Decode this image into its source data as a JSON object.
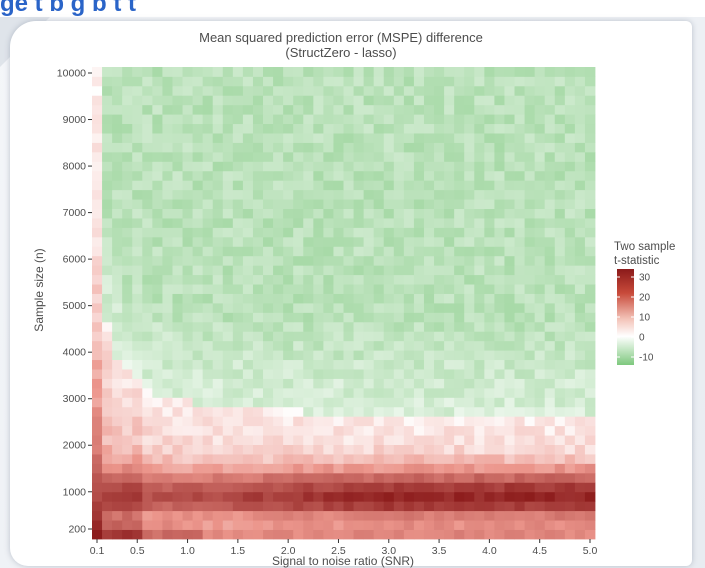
{
  "header_text": "ge  t  b      g         b      t        t",
  "chart_data": {
    "type": "heatmap",
    "title": "Mean squared prediction error (MSPE) difference",
    "subtitle": "(StructZero - lasso)",
    "xlabel": "Signal to noise ratio (SNR)",
    "ylabel": "Sample size (n)",
    "x_ticks": [
      0.1,
      0.5,
      1.0,
      1.5,
      2.0,
      2.5,
      3.0,
      3.5,
      4.0,
      4.5,
      5.0
    ],
    "x_tick_labels": [
      "0.1",
      "0.5",
      "1.0",
      "1.5",
      "2.0",
      "2.5",
      "3.0",
      "3.5",
      "4.0",
      "4.5",
      "5.0"
    ],
    "y_ticks": [
      200,
      1000,
      2000,
      3000,
      4000,
      5000,
      6000,
      7000,
      8000,
      9000,
      10000
    ],
    "y_tick_labels": [
      "200",
      "1000",
      "2000",
      "3000",
      "4000",
      "5000",
      "6000",
      "7000",
      "8000",
      "9000",
      "10000"
    ],
    "xlim": [
      0.1,
      5.0
    ],
    "ylim": [
      200,
      10000
    ],
    "grid_x": {
      "start": 0.1,
      "end": 5.0,
      "count": 50
    },
    "grid_y": {
      "start": 200,
      "end": 10000,
      "count": 50
    },
    "colorbar": {
      "title": "Two sample\nt-statistic",
      "ticks": [
        30,
        20,
        10,
        0,
        -10
      ],
      "range": [
        -14,
        34
      ],
      "low_color": "#7ec87e",
      "mid_color": "#ffffff",
      "high_color": "#8b1a1a"
    },
    "panel_background": "#ebebeb",
    "legend_position": "right",
    "description": "Near-zero / slightly negative (green, about -8) for large sample sizes; positive (red, up to about 30) for small sample sizes (< ~2500) across all SNR, strongest near n = 200-1000 and along SNR = 0.1 column."
  }
}
